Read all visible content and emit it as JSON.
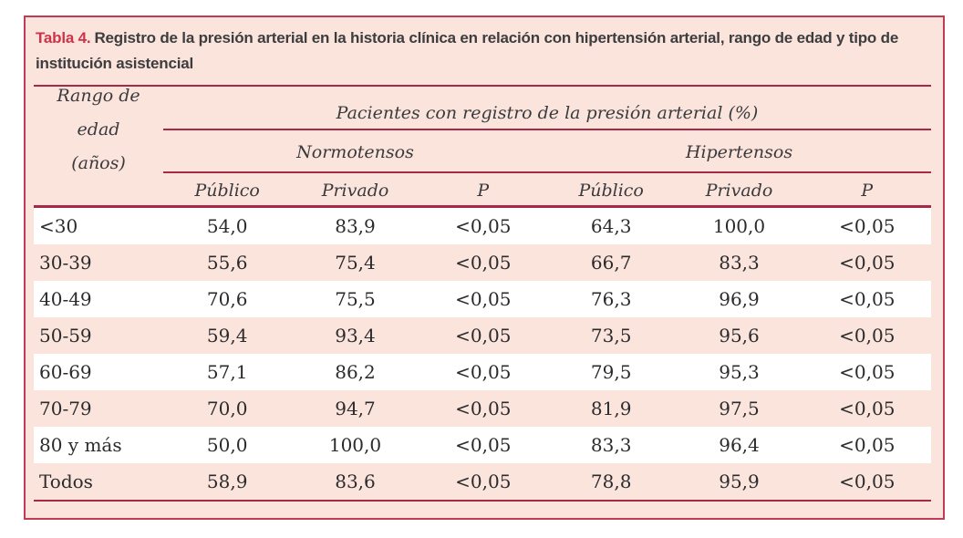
{
  "panel": {
    "title_label": "Tabla 4.",
    "title_text": "Registro de la presión arterial en la historia clínica en relación con hipertensión arterial, rango de edad y tipo de institución asistencial"
  },
  "table": {
    "row_header_line1": "Rango de edad",
    "row_header_line2": "(años)",
    "span_header": "Pacientes con registro de la presión arterial (%)",
    "group_headers": [
      "Normotensos",
      "Hipertensos"
    ],
    "col_headers": [
      "Público",
      "Privado",
      "P",
      "Público",
      "Privado",
      "P"
    ],
    "rows": [
      {
        "label": "<30",
        "values": [
          "54,0",
          "83,9",
          "<0,05",
          "64,3",
          "100,0",
          "<0,05"
        ]
      },
      {
        "label": "30-39",
        "values": [
          "55,6",
          "75,4",
          "<0,05",
          "66,7",
          "83,3",
          "<0,05"
        ]
      },
      {
        "label": "40-49",
        "values": [
          "70,6",
          "75,5",
          "<0,05",
          "76,3",
          "96,9",
          "<0,05"
        ]
      },
      {
        "label": "50-59",
        "values": [
          "59,4",
          "93,4",
          "<0,05",
          "73,5",
          "95,6",
          "<0,05"
        ]
      },
      {
        "label": "60-69",
        "values": [
          "57,1",
          "86,2",
          "<0,05",
          "79,5",
          "95,3",
          "<0,05"
        ]
      },
      {
        "label": "70-79",
        "values": [
          "70,0",
          "94,7",
          "<0,05",
          "81,9",
          "97,5",
          "<0,05"
        ]
      },
      {
        "label": "80 y más",
        "values": [
          "50,0",
          "100,0",
          "<0,05",
          "83,3",
          "96,4",
          "<0,05"
        ]
      },
      {
        "label": "Todos",
        "values": [
          "58,9",
          "83,6",
          "<0,05",
          "78,8",
          "95,9",
          "<0,05"
        ]
      }
    ]
  },
  "colors": {
    "panel_bg": "#fbe4dc",
    "border": "#c23a53",
    "rule": "#a82945",
    "accent_red": "#ce3449",
    "stripe": "#ffffff"
  }
}
